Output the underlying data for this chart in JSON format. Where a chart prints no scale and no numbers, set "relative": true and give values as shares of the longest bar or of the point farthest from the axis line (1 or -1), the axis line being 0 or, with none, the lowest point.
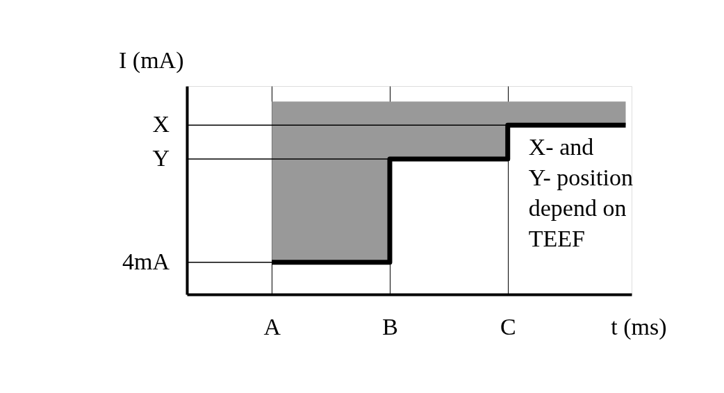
{
  "chart_data": {
    "type": "step",
    "relative": true,
    "xlabel": "t (ms)",
    "ylabel": "I (mA)",
    "categories": [
      "A",
      "B",
      "C",
      null
    ],
    "series": [
      {
        "color": "#000000",
        "values": [
          0.19,
          0.8,
          1,
          1
        ],
        "lower": [
          0.19,
          0.8,
          1,
          1
        ],
        "upper": [
          1.14,
          1.14,
          1.14,
          1.14
        ]
      }
    ],
    "ref_lines": [
      {
        "axis": "y",
        "value": 0.19,
        "label": "4mA"
      },
      {
        "axis": "y",
        "value": 0.8,
        "label": "Y"
      },
      {
        "axis": "y",
        "value": 1,
        "label": "X"
      }
    ],
    "grid": "x",
    "marker": "none",
    "annotations": [
      "X- and\nY- position\ndepend on\nTEEF"
    ]
  }
}
